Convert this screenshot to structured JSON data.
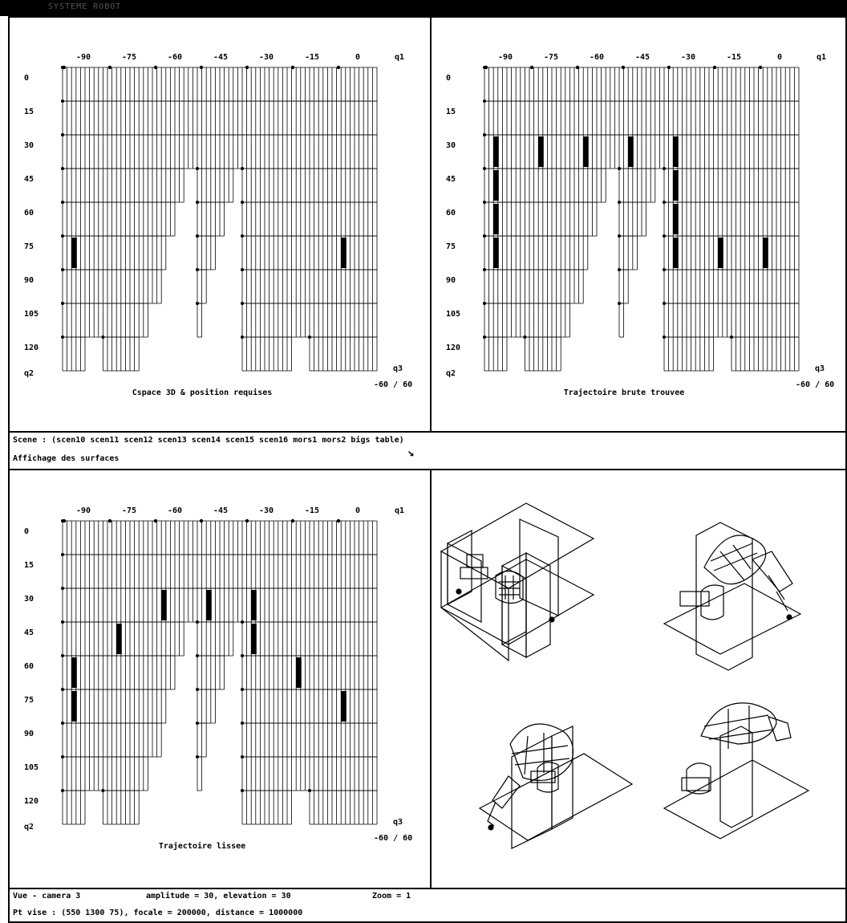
{
  "window": {
    "title": "SYSTEME ROBOT"
  },
  "panels": [
    {
      "id": "top-left",
      "caption": "Cspace 3D & position requises",
      "q1_ticks": [
        "-90",
        "-75",
        "-60",
        "-45",
        "-30",
        "-15",
        "0"
      ],
      "q1_label": "q1",
      "q2_ticks": [
        "0",
        "15",
        "30",
        "45",
        "60",
        "75",
        "90",
        "105",
        "120"
      ],
      "q2_label": "q2",
      "q3_label": "q3",
      "q3_range": "-60 / 60",
      "highlights": [
        [
          0,
          5
        ],
        [
          6,
          5
        ]
      ]
    },
    {
      "id": "top-right",
      "caption": "Trajectoire brute trouvee",
      "q1_ticks": [
        "-90",
        "-75",
        "-60",
        "-45",
        "-30",
        "-15",
        "0"
      ],
      "q1_label": "q1",
      "q2_ticks": [
        "0",
        "15",
        "30",
        "45",
        "60",
        "75",
        "90",
        "105",
        "120"
      ],
      "q2_label": "q2",
      "q3_label": "q3",
      "q3_range": "-60 / 60",
      "highlights": [
        [
          0,
          2
        ],
        [
          0,
          3
        ],
        [
          0,
          4
        ],
        [
          0,
          5
        ],
        [
          1,
          2
        ],
        [
          2,
          2
        ],
        [
          3,
          2
        ],
        [
          4,
          2
        ],
        [
          4,
          3
        ],
        [
          4,
          4
        ],
        [
          4,
          5
        ],
        [
          5,
          5
        ],
        [
          6,
          5
        ]
      ]
    },
    {
      "id": "bottom-left",
      "caption": "Trajectoire lissee",
      "q1_ticks": [
        "-90",
        "-75",
        "-60",
        "-45",
        "-30",
        "-15",
        "0"
      ],
      "q1_label": "q1",
      "q2_ticks": [
        "0",
        "15",
        "30",
        "45",
        "60",
        "75",
        "90",
        "105",
        "120"
      ],
      "q2_label": "q2",
      "q3_label": "q3",
      "q3_range": "-60 / 60",
      "highlights": [
        [
          0,
          4
        ],
        [
          0,
          5
        ],
        [
          1,
          3
        ],
        [
          2,
          2
        ],
        [
          3,
          2
        ],
        [
          4,
          2
        ],
        [
          4,
          3
        ],
        [
          5,
          4
        ],
        [
          6,
          5
        ]
      ]
    }
  ],
  "messages": {
    "scene": "Scene : (scen10 scen11 scen12 scen13 scen14 scen15 scen16 mors1 mors2 bigs table)",
    "display": "Affichage des surfaces",
    "arrow": "↘"
  },
  "status": {
    "view": "Vue - camera 3",
    "amplitude": "amplitude = 30, elevation = 30",
    "zoom": "Zoom = 1",
    "target": "Pt vise : (550 1300 75), focale = 200000, distance = 1000000"
  }
}
